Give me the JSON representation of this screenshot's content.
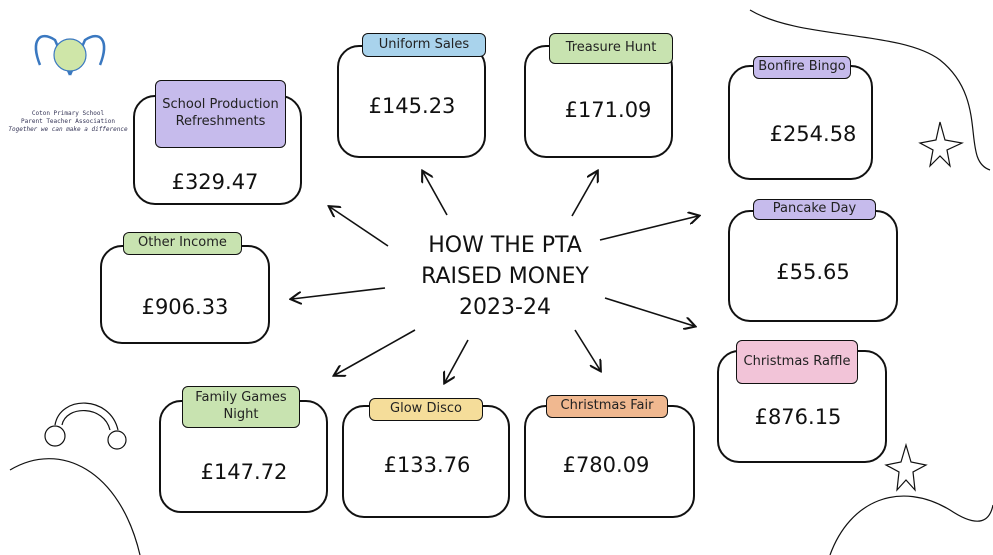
{
  "header": {
    "title_lines": [
      "HOW THE PTA",
      "RAISED MONEY",
      "2023-24"
    ]
  },
  "logo": {
    "school": "Coton Primary School",
    "association": "Parent Teacher Association",
    "motto": "Together we can make a difference"
  },
  "nodes": [
    {
      "label": "School Production Refreshments",
      "amount": "£329.47"
    },
    {
      "label": "Uniform Sales",
      "amount": "£145.23"
    },
    {
      "label": "Treasure Hunt",
      "amount": "£171.09"
    },
    {
      "label": "Bonfire Bingo",
      "amount": "£254.58"
    },
    {
      "label": "Pancake Day",
      "amount": "£55.65"
    },
    {
      "label": "Christmas Raffle",
      "amount": "£876.15"
    },
    {
      "label": "Christmas Fair",
      "amount": "£780.09"
    },
    {
      "label": "Glow Disco",
      "amount": "£133.76"
    },
    {
      "label": "Family Games Night",
      "amount": "£147.72"
    },
    {
      "label": "Other Income",
      "amount": "£906.33"
    }
  ]
}
